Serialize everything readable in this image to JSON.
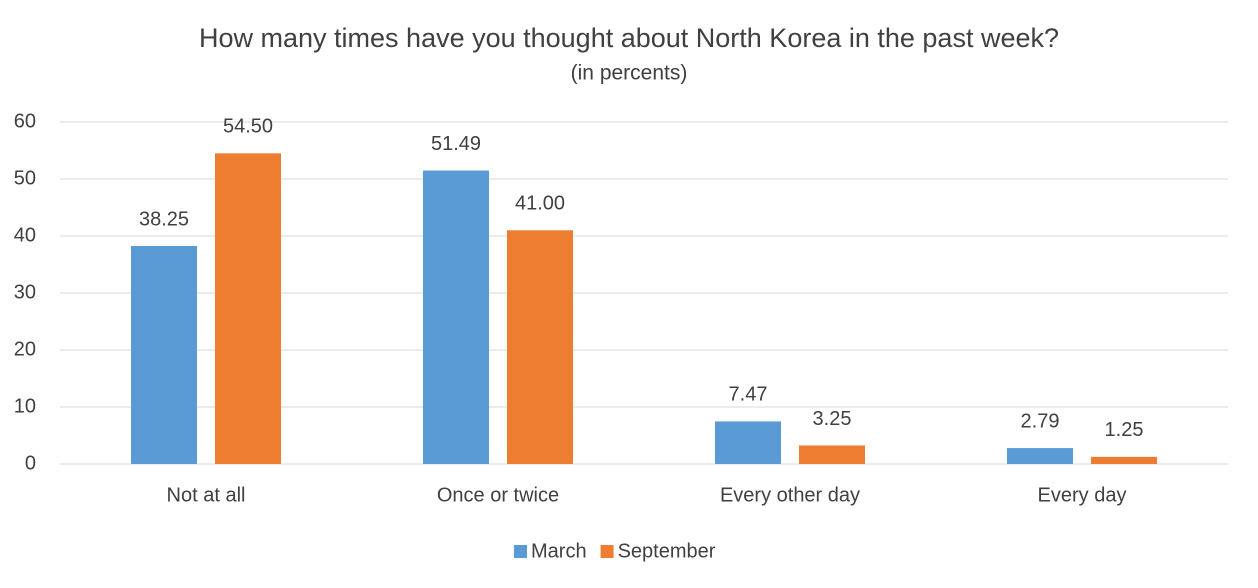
{
  "chart_data": {
    "type": "bar",
    "title": "How many times have you thought about North Korea in the past week?",
    "subtitle": "(in percents)",
    "categories": [
      "Not at all",
      "Once or twice",
      "Every other day",
      "Every day"
    ],
    "series": [
      {
        "name": "March",
        "color": "#5b9bd5",
        "values": [
          38.25,
          51.49,
          7.47,
          2.79
        ],
        "value_labels": [
          "38.25",
          "51.49",
          "7.47",
          "2.79"
        ]
      },
      {
        "name": "September",
        "color": "#ed7d31",
        "values": [
          54.5,
          41,
          3.25,
          1.25
        ],
        "value_labels": [
          "54.50",
          "41.00",
          "3.25",
          "1.25"
        ]
      }
    ],
    "ylim": [
      0,
      60
    ],
    "yticks": [
      0,
      10,
      20,
      30,
      40,
      50,
      60
    ],
    "grid": true,
    "legend": "bottom"
  }
}
